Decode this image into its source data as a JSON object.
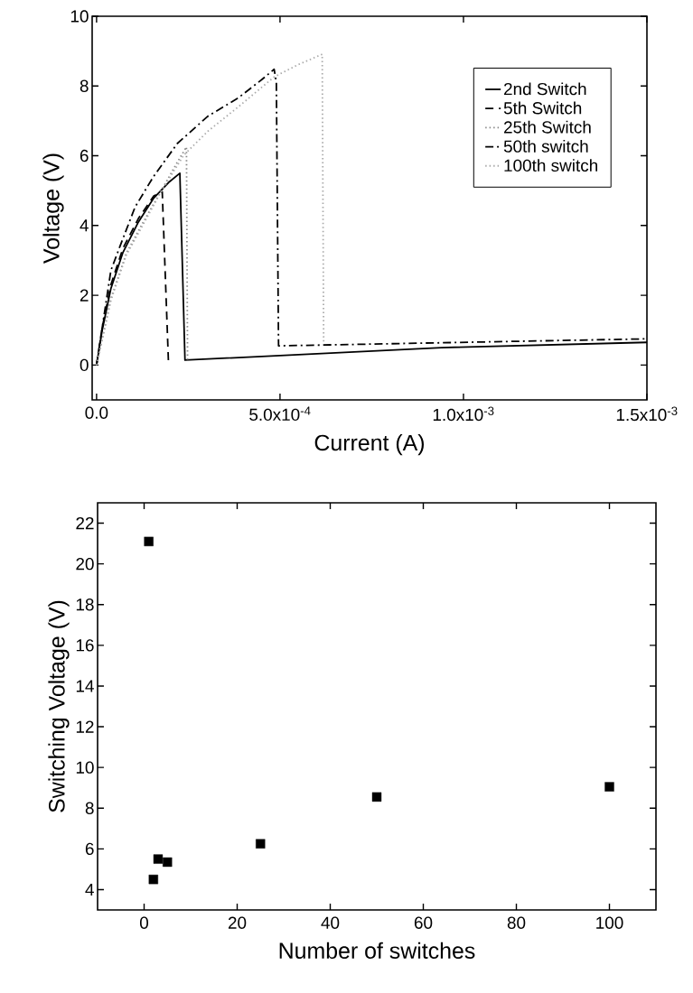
{
  "chart_data": [
    {
      "type": "line",
      "xlabel": "Current (A)",
      "ylabel": "Voltage (V)",
      "xlim": [
        -1.2e-05,
        0.0015
      ],
      "ylim": [
        -1,
        10
      ],
      "xticks": [
        {
          "value": 0,
          "label": "0.0"
        },
        {
          "value": 0.0005,
          "label": "5.0x10$^{-4}$"
        },
        {
          "value": 0.001,
          "label": "1.0x10$^{-3}$"
        },
        {
          "value": 0.0015,
          "label": "1.5x10$^{-3}$"
        }
      ],
      "yticks": [
        0,
        2,
        4,
        6,
        8,
        10
      ],
      "legend": "top right",
      "series": [
        {
          "name": "2nd Switch",
          "color": "#000000",
          "line_style": "solid",
          "x": [
            0,
            1.5e-05,
            3.9e-05,
            7.2e-05,
            0.000114,
            0.000156,
            0.000196,
            0.000227,
            0.000241,
            0.00094,
            0.0015
          ],
          "values": [
            0,
            0.98,
            2.19,
            3.23,
            4.1,
            4.79,
            5.23,
            5.5,
            0.14,
            0.5,
            0.65
          ]
        },
        {
          "name": "5th Switch",
          "color": "#000000",
          "line_style": "dashed",
          "x": [
            0,
            1.5e-05,
            3.9e-05,
            7.2e-05,
            0.000114,
            0.000156,
            0.000179,
            0.000196
          ],
          "values": [
            0,
            1.05,
            2.3,
            3.35,
            4.2,
            4.85,
            4.97,
            0.07
          ]
        },
        {
          "name": "25th Switch",
          "color": "#888888",
          "line_style": "dotted",
          "x": [
            0,
            3.9e-05,
            8.1e-05,
            0.000122,
            0.000171,
            0.000222,
            0.000245,
            0.000248
          ],
          "values": [
            0,
            1.9,
            3.2,
            4.0,
            4.9,
            5.85,
            6.25,
            0.14
          ]
        },
        {
          "name": "50th switch",
          "color": "#000000",
          "line_style": "dashdot",
          "x": [
            0,
            3.9e-05,
            6.4e-05,
            0.000105,
            0.000155,
            0.00022,
            0.000303,
            0.000385,
            0.00045,
            0.000484,
            0.00049,
            0.000496,
            0.0015
          ],
          "values": [
            0,
            2.71,
            3.41,
            4.53,
            5.4,
            6.35,
            7.13,
            7.65,
            8.18,
            8.48,
            8.09,
            0.55,
            0.75
          ]
        },
        {
          "name": "100th switch",
          "color": "#aaaaaa",
          "line_style": "dotted",
          "x": [
            0,
            3.9e-05,
            8.1e-05,
            0.000122,
            0.000171,
            0.000237,
            0.000303,
            0.000385,
            0.000484,
            0.000549,
            0.000615,
            0.000619
          ],
          "values": [
            0,
            1.85,
            3.15,
            3.93,
            4.88,
            6.01,
            6.7,
            7.39,
            8.26,
            8.61,
            8.91,
            0.63
          ]
        }
      ]
    },
    {
      "type": "scatter",
      "xlabel": "Number of switches",
      "ylabel": "Switching Voltage (V)",
      "xlim": [
        -10,
        110
      ],
      "ylim": [
        3,
        23
      ],
      "xticks": [
        0,
        20,
        40,
        60,
        80,
        100
      ],
      "yticks": [
        4,
        6,
        8,
        10,
        12,
        14,
        16,
        18,
        20,
        22
      ],
      "marker": "square",
      "color": "#000000",
      "x": [
        1,
        2,
        3,
        5,
        25,
        50,
        100
      ],
      "values": [
        21.1,
        4.5,
        5.5,
        5.35,
        6.25,
        8.55,
        9.05
      ]
    }
  ]
}
